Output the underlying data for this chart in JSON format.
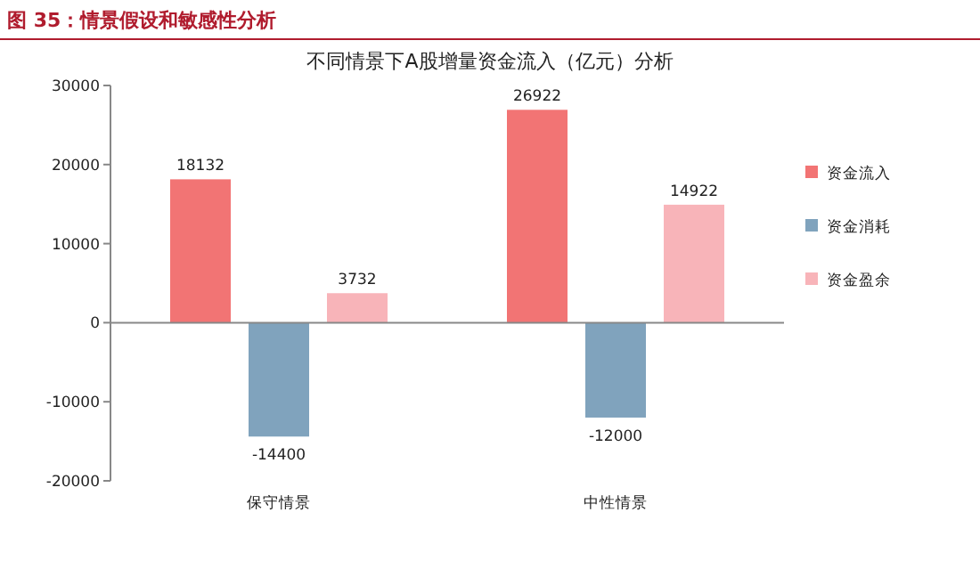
{
  "chart_data": {
    "type": "bar",
    "title": "图 35：情景假设和敏感性分析",
    "subtitle": "不同情景下A股增量资金流入（亿元）分析",
    "categories": [
      "保守情景",
      "中性情景"
    ],
    "series": [
      {
        "name": "资金流入",
        "color": "#f27474",
        "values": [
          18132,
          26922
        ]
      },
      {
        "name": "资金消耗",
        "color": "#80a3bd",
        "values": [
          -14400,
          -12000
        ]
      },
      {
        "name": "资金盈余",
        "color": "#f8b4b9",
        "values": [
          3732,
          14922
        ]
      }
    ],
    "ylim": [
      -20000,
      30000
    ],
    "yticks": [
      -20000,
      -10000,
      0,
      10000,
      20000,
      30000
    ],
    "data_labels": true,
    "legend": "right"
  }
}
